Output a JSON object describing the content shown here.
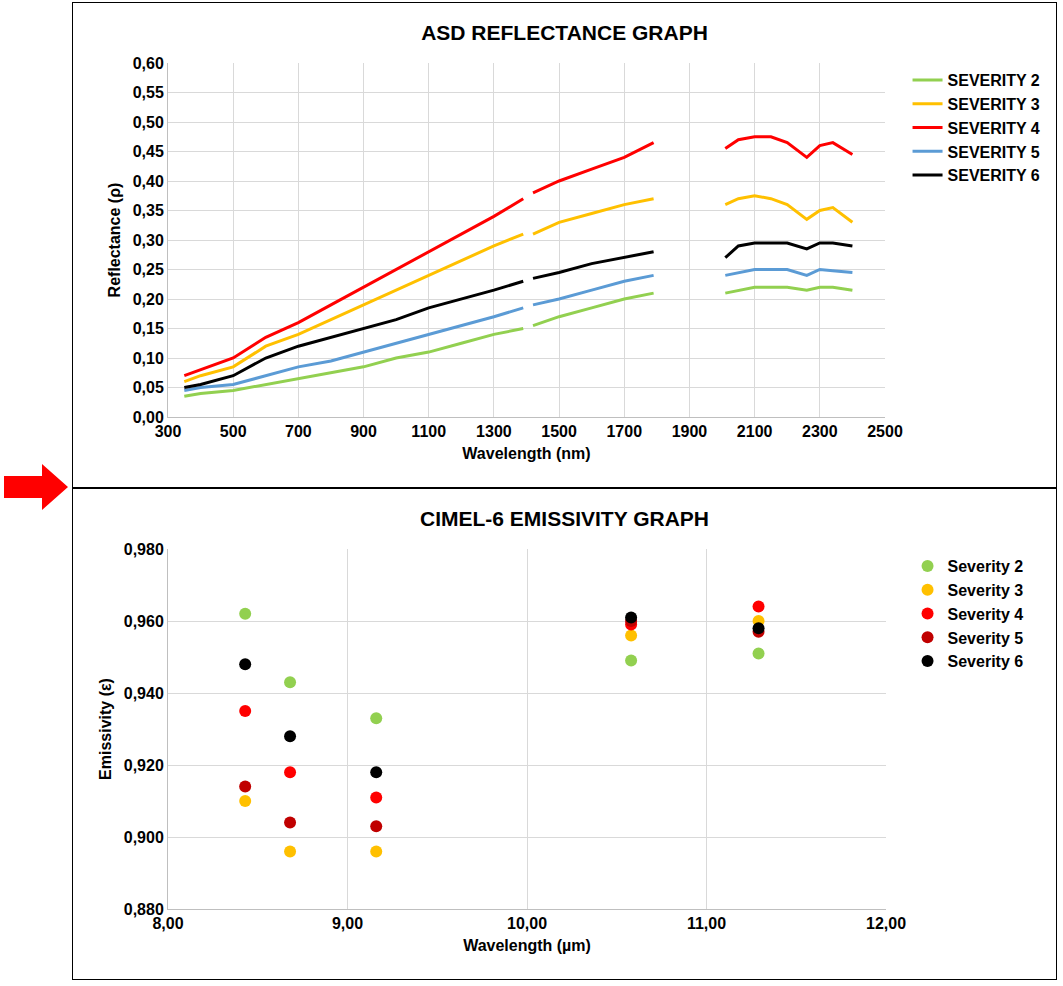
{
  "chart_data": [
    {
      "type": "line",
      "title": "ASD REFLECTANCE GRAPH",
      "x_label": "Wavelength (nm)",
      "y_label": "Reflectance (ρ)",
      "x": [
        350,
        400,
        500,
        600,
        700,
        800,
        900,
        1000,
        1100,
        1200,
        1300,
        1390,
        1400,
        1420,
        1500,
        1600,
        1700,
        1790,
        1900,
        2010,
        2050,
        2100,
        2150,
        2200,
        2260,
        2300,
        2340,
        2400
      ],
      "series": [
        {
          "name": "SEVERITY 2",
          "color": "#92d050",
          "values": [
            0.035,
            0.04,
            0.045,
            0.055,
            0.065,
            0.075,
            0.085,
            0.1,
            0.11,
            0.125,
            0.14,
            0.15,
            null,
            0.155,
            0.17,
            0.185,
            0.2,
            0.21,
            null,
            0.21,
            0.215,
            0.22,
            0.22,
            0.22,
            0.215,
            0.22,
            0.22,
            0.215
          ]
        },
        {
          "name": "SEVERITY 3",
          "color": "#ffc000",
          "values": [
            0.06,
            0.07,
            0.085,
            0.12,
            0.14,
            0.165,
            0.19,
            0.215,
            0.24,
            0.265,
            0.29,
            0.31,
            null,
            0.31,
            0.33,
            0.345,
            0.36,
            0.37,
            null,
            0.36,
            0.37,
            0.375,
            0.37,
            0.36,
            0.335,
            0.35,
            0.355,
            0.33
          ]
        },
        {
          "name": "SEVERITY 4",
          "color": "#ff0000",
          "values": [
            0.07,
            0.08,
            0.1,
            0.135,
            0.16,
            0.19,
            0.22,
            0.25,
            0.28,
            0.31,
            0.34,
            0.37,
            null,
            0.38,
            0.4,
            0.42,
            0.44,
            0.465,
            null,
            0.455,
            0.47,
            0.475,
            0.475,
            0.465,
            0.44,
            0.46,
            0.465,
            0.445
          ]
        },
        {
          "name": "SEVERITY 5",
          "color": "#5b9bd5",
          "values": [
            0.045,
            0.05,
            0.055,
            0.07,
            0.085,
            0.095,
            0.11,
            0.125,
            0.14,
            0.155,
            0.17,
            0.185,
            null,
            0.19,
            0.2,
            0.215,
            0.23,
            0.24,
            null,
            0.24,
            0.245,
            0.25,
            0.25,
            0.25,
            0.24,
            0.25,
            0.248,
            0.245
          ]
        },
        {
          "name": "SEVERITY 6",
          "color": "#000000",
          "values": [
            0.05,
            0.055,
            0.07,
            0.1,
            0.12,
            0.135,
            0.15,
            0.165,
            0.185,
            0.2,
            0.215,
            0.23,
            null,
            0.235,
            0.245,
            0.26,
            0.27,
            0.28,
            null,
            0.27,
            0.29,
            0.295,
            0.295,
            0.295,
            0.285,
            0.295,
            0.295,
            0.29
          ]
        }
      ],
      "xlim": [
        300,
        2500
      ],
      "xticks": [
        300,
        500,
        700,
        900,
        1100,
        1300,
        1500,
        1700,
        1900,
        2100,
        2300,
        2500
      ],
      "ylim": [
        0,
        0.6
      ],
      "yticks": [
        {
          "value": 0,
          "label": "0,00"
        },
        {
          "value": 0.05,
          "label": "0,05"
        },
        {
          "value": 0.1,
          "label": "0,10"
        },
        {
          "value": 0.15,
          "label": "0,15"
        },
        {
          "value": 0.2,
          "label": "0,20"
        },
        {
          "value": 0.25,
          "label": "0,25"
        },
        {
          "value": 0.3,
          "label": "0,30"
        },
        {
          "value": 0.35,
          "label": "0,35"
        },
        {
          "value": 0.4,
          "label": "0,40"
        },
        {
          "value": 0.45,
          "label": "0,45"
        },
        {
          "value": 0.5,
          "label": "0,50"
        },
        {
          "value": 0.55,
          "label": "0,55"
        },
        {
          "value": 0.6,
          "label": "0,60"
        }
      ],
      "grid": true,
      "legend": "right"
    },
    {
      "type": "scatter",
      "title": "CIMEL-6 EMISSIVITY GRAPH",
      "x_label": "Wavelength (µm)",
      "y_label": "Emissivity (ε)",
      "x": [
        8.43,
        8.68,
        9.16,
        10.58,
        11.29
      ],
      "marker": "circle",
      "series": [
        {
          "name": "Severity 2",
          "color": "#92d050",
          "values": [
            0.962,
            0.943,
            0.933,
            0.949,
            0.951
          ]
        },
        {
          "name": "Severity 3",
          "color": "#ffc000",
          "values": [
            0.91,
            0.896,
            0.896,
            0.956,
            0.96
          ]
        },
        {
          "name": "Severity 4",
          "color": "#ff0000",
          "values": [
            0.935,
            0.918,
            0.911,
            0.959,
            0.964
          ]
        },
        {
          "name": "Severity 5",
          "color": "#c00000",
          "values": [
            0.914,
            0.904,
            0.903,
            0.96,
            0.957
          ]
        },
        {
          "name": "Severity 6",
          "color": "#000000",
          "values": [
            0.948,
            0.928,
            0.918,
            0.961,
            0.958
          ]
        }
      ],
      "xlim": [
        8,
        12
      ],
      "xticks": [
        {
          "value": 8,
          "label": "8,00"
        },
        {
          "value": 9,
          "label": "9,00"
        },
        {
          "value": 10,
          "label": "10,00"
        },
        {
          "value": 11,
          "label": "11,00"
        },
        {
          "value": 12,
          "label": "12,00"
        }
      ],
      "ylim": [
        0.88,
        0.98
      ],
      "yticks": [
        {
          "value": 0.88,
          "label": "0,880"
        },
        {
          "value": 0.9,
          "label": "0,900"
        },
        {
          "value": 0.92,
          "label": "0,920"
        },
        {
          "value": 0.94,
          "label": "0,940"
        },
        {
          "value": 0.96,
          "label": "0,960"
        },
        {
          "value": 0.98,
          "label": "0,980"
        }
      ],
      "grid": true,
      "legend": "right"
    }
  ]
}
